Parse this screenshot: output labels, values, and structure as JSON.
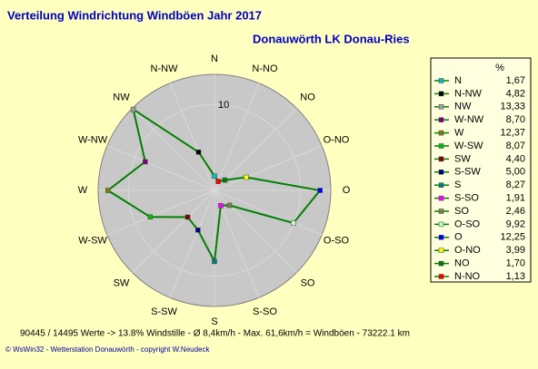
{
  "chart_data": {
    "type": "radar",
    "title": "Verteilung Windrichtung Windböen  Jahr 2017",
    "subtitle": "Donauwörth LK Donau-Ries",
    "categories": [
      "N",
      "N-NW",
      "NW",
      "W-NW",
      "W",
      "W-SW",
      "SW",
      "S-SW",
      "S",
      "S-SO",
      "SO",
      "O-SO",
      "O",
      "O-NO",
      "NO",
      "N-NO"
    ],
    "values": [
      1.67,
      4.82,
      13.33,
      8.7,
      12.37,
      8.07,
      4.4,
      5.0,
      8.27,
      1.91,
      2.46,
      9.92,
      12.25,
      3.99,
      1.7,
      1.13
    ],
    "value_labels": [
      "1,67",
      "4,82",
      "13,33",
      "8,70",
      "12,37",
      "8,07",
      "4,40",
      "5,00",
      "8,27",
      "1,91",
      "2,46",
      "9,92",
      "12,25",
      "3,99",
      "1,70",
      "1,13"
    ],
    "marker_colors": [
      "#00c0c0",
      "#000000",
      "#a0a0a0",
      "#800080",
      "#808000",
      "#00c000",
      "#800000",
      "#000080",
      "#008080",
      "#ff00ff",
      "#808040",
      "#c0ffc0",
      "#0000ff",
      "#ffff00",
      "#008000",
      "#ff0000"
    ],
    "color": "#008000",
    "legend_header": "%",
    "ylim": [
      0,
      13.5
    ],
    "yticks": [
      10
    ],
    "footer": "90445 / 14495 Werte  -> 13.8% Windstille   -  Ø 8,4km/h  -  Max. 61,6km/h = Windböen   -   73222.1 km",
    "copyright": "© WsWin32  -  Wetterstation Donauwörth  -  copyright W.Neudeck"
  }
}
